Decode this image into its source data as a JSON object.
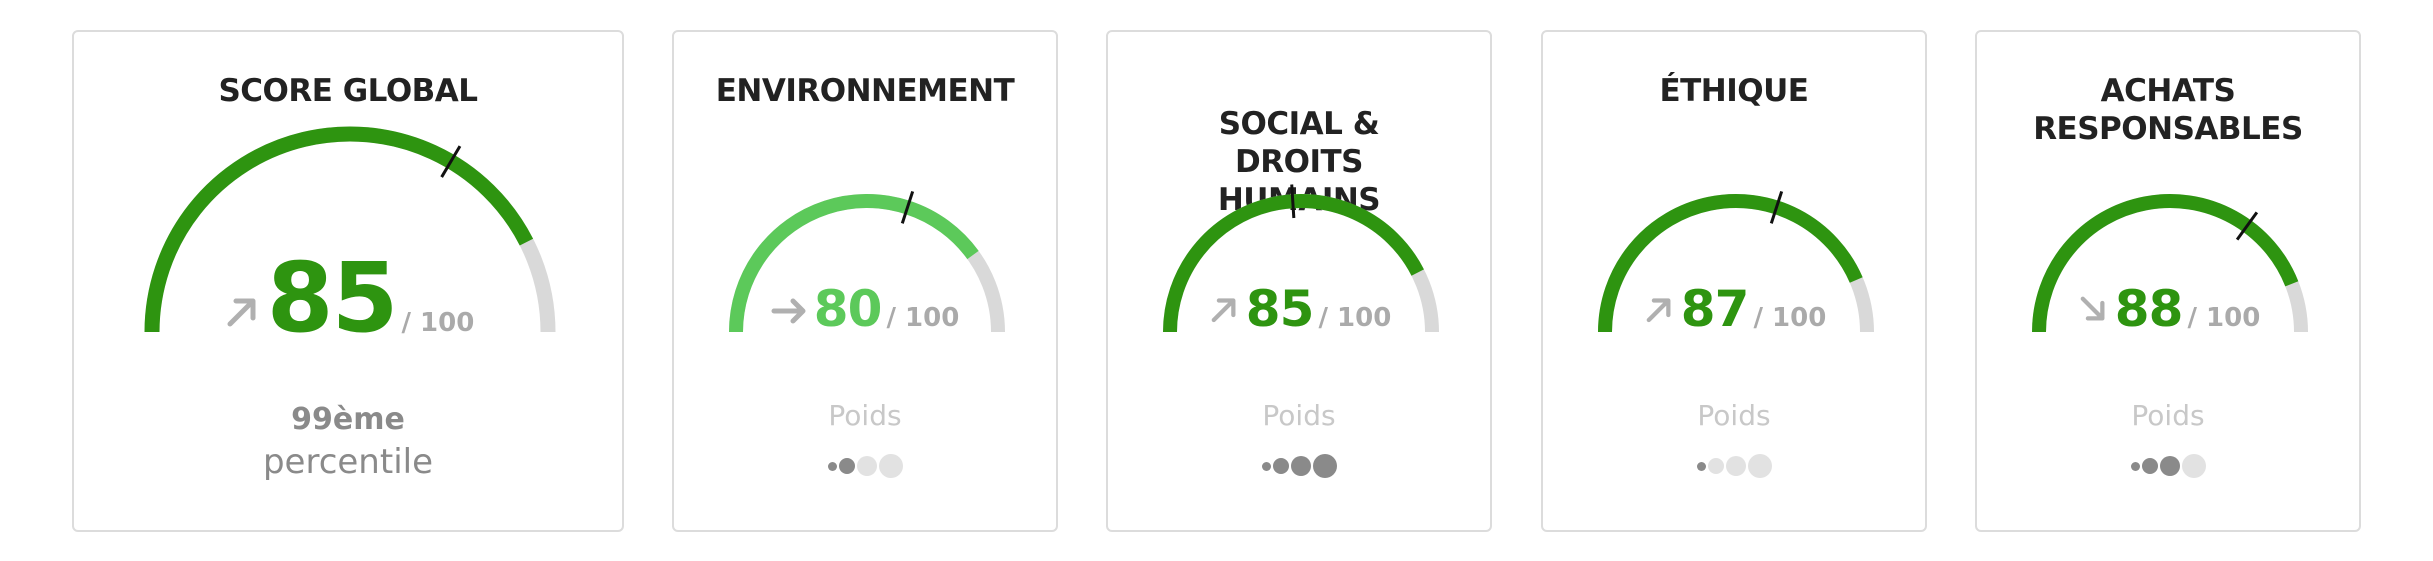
{
  "colors": {
    "dark_green": "#2e9410",
    "light_green": "#5cc95a",
    "track_gray": "#d9d9d9",
    "arrow_gray": "#b0b0b0",
    "dot_filled": "#8a8a8a",
    "dot_empty": "#e2e2e2"
  },
  "cards": [
    {
      "title": "SCORE GLOBAL",
      "score": "85",
      "denominator": "/ 100",
      "score_value": 85,
      "marker_value": 67,
      "trend": "up",
      "trend_icon": "arrow-up-right-icon",
      "color": "#2e9410",
      "percentile_value": "99",
      "percentile_suffix": "ème",
      "percentile_label": "percentile"
    },
    {
      "title": "ENVIRONNEMENT",
      "score": "80",
      "denominator": "/ 100",
      "score_value": 80,
      "marker_value": 60,
      "trend": "right",
      "trend_icon": "arrow-right-icon",
      "color": "#5cc95a",
      "weight_label": "Poids",
      "weight_level": 2
    },
    {
      "title": "SOCIAL & DROITS HUMAINS",
      "score": "85",
      "denominator": "/ 100",
      "score_value": 85,
      "marker_value": 48,
      "trend": "up",
      "trend_icon": "arrow-up-right-icon",
      "color": "#2e9410",
      "weight_label": "Poids",
      "weight_level": 4
    },
    {
      "title": "ÉTHIQUE",
      "score": "87",
      "denominator": "/ 100",
      "score_value": 87,
      "marker_value": 60,
      "trend": "up",
      "trend_icon": "arrow-up-right-icon",
      "color": "#2e9410",
      "weight_label": "Poids",
      "weight_level": 1
    },
    {
      "title": "ACHATS RESPONSABLES",
      "score": "88",
      "denominator": "/ 100",
      "score_value": 88,
      "marker_value": 70,
      "trend": "down",
      "trend_icon": "arrow-down-right-icon",
      "color": "#2e9410",
      "weight_label": "Poids",
      "weight_level": 3
    }
  ]
}
